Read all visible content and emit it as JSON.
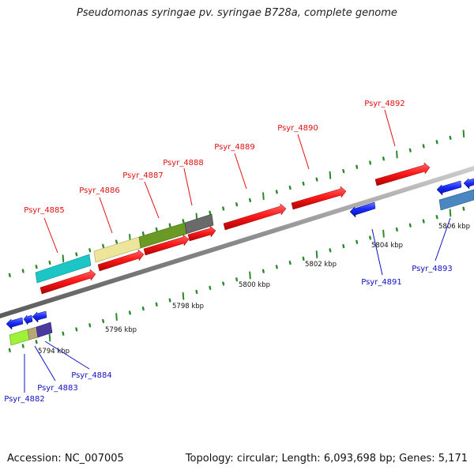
{
  "title": "Pseudomonas syringae pv. syringae B728a, complete genome",
  "footer": {
    "accession_label": "Accession:",
    "accession": "NC_007005",
    "topology_label": "Topology:",
    "topology": "circular",
    "length_label": "Length:",
    "length": "6,093,698 bp",
    "genes_label": "Genes:",
    "genes": "5,171"
  },
  "colors": {
    "forward_gene": "#ff1a1a",
    "reverse_gene": "#1a2bff",
    "backbone": "#8a8a8a",
    "tick": "#2a8a2a",
    "forward_label": "#e01010",
    "reverse_label": "#1010c0"
  },
  "scale_labels": [
    "5794 kbp",
    "5796 kbp",
    "5798 kbp",
    "5800 kbp",
    "5802 kbp",
    "5804 kbp",
    "5806 kbp"
  ],
  "forward_labels": [
    "Psyr_4885",
    "Psyr_4886",
    "Psyr_4887",
    "Psyr_4888",
    "Psyr_4889",
    "Psyr_4890",
    "Psyr_4892"
  ],
  "reverse_labels": [
    "Psyr_4882",
    "Psyr_4883",
    "Psyr_4884",
    "Psyr_4891",
    "Psyr_4893"
  ]
}
